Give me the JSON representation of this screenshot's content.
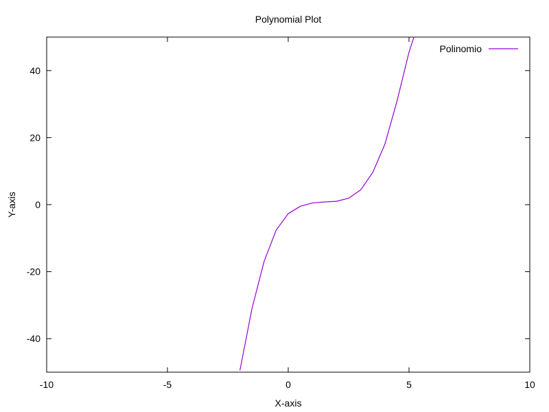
{
  "chart_data": {
    "type": "line",
    "title": "Polynomial Plot",
    "xlabel": "X-axis",
    "ylabel": "Y-axis",
    "xlim": [
      -10,
      10
    ],
    "ylim": [
      -50,
      50
    ],
    "xticks": [
      -10,
      -5,
      0,
      5,
      10
    ],
    "yticks": [
      -40,
      -20,
      0,
      20,
      40
    ],
    "xtick_labels": [
      "-10",
      "-5",
      "0",
      "5",
      "10"
    ],
    "ytick_labels": [
      "-40",
      "-20",
      "0",
      "20",
      "40"
    ],
    "grid": false,
    "legend_position": "top-right",
    "series": [
      {
        "name": "Polinomio",
        "color": "#9400d3",
        "x": [
          -2.0,
          -1.5,
          -1.0,
          -0.5,
          0.0,
          0.5,
          1.0,
          1.5,
          2.0,
          2.5,
          3.0,
          3.5,
          4.0,
          4.5,
          5.0,
          5.25
        ],
        "y": [
          -49.5,
          -31.0,
          -17.0,
          -7.6,
          -2.7,
          -0.5,
          0.5,
          0.8,
          1.0,
          1.9,
          4.4,
          9.6,
          18.0,
          30.8,
          45.5,
          51.0
        ]
      }
    ]
  }
}
